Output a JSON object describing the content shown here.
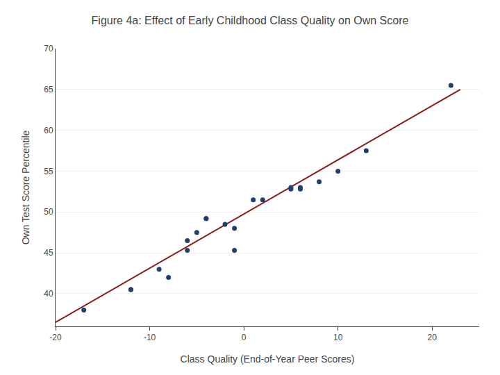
{
  "chart_data": {
    "type": "scatter",
    "title": "Figure 4a: Effect of Early Childhood Class Quality on Own Score",
    "xlabel": "Class Quality (End-of-Year Peer Scores)",
    "ylabel": "Own Test Score Percentile",
    "xlim": [
      -20,
      25
    ],
    "ylim": [
      36,
      70
    ],
    "xticks": [
      -20,
      -10,
      0,
      10,
      20
    ],
    "yticks": [
      40,
      45,
      50,
      55,
      60,
      65,
      70
    ],
    "grid": "y",
    "series": [
      {
        "type": "line",
        "color": "#8b1a1a",
        "x": [
          -20,
          23
        ],
        "values": [
          36.5,
          65.0
        ]
      },
      {
        "type": "scatter",
        "color": "#1f3f6e",
        "x": [
          -17,
          -12,
          -12,
          -9,
          -8,
          -6,
          -6,
          -5,
          -4,
          -4,
          -2,
          -1,
          -1,
          1,
          2,
          5,
          5,
          6,
          6,
          8,
          10,
          13,
          22
        ],
        "values": [
          38,
          40.5,
          40.5,
          43,
          42,
          46.5,
          45.3,
          47.5,
          49.2,
          49.2,
          48.5,
          48,
          45.3,
          51.5,
          51.5,
          53,
          52.8,
          53,
          52.8,
          53.7,
          55,
          57.5,
          65.5
        ]
      }
    ]
  }
}
